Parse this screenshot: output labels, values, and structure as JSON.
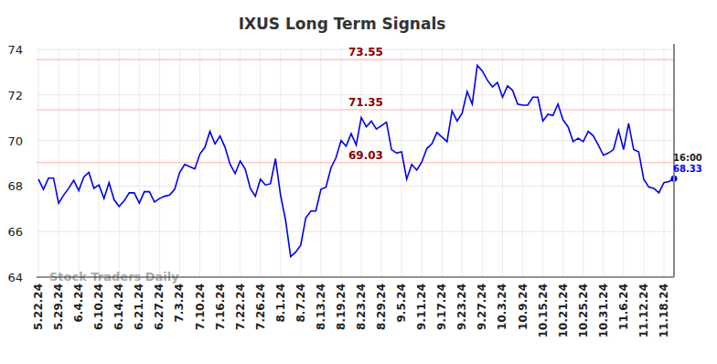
{
  "chart_data": {
    "type": "line",
    "title": "IXUS Long Term Signals",
    "categories": [
      "5.22.24",
      null,
      null,
      null,
      "5.29.24",
      null,
      null,
      null,
      "6.4.24",
      null,
      null,
      null,
      "6.10.24",
      null,
      null,
      null,
      "6.14.24",
      null,
      null,
      null,
      "6.21.24",
      null,
      null,
      null,
      "6.27.24",
      null,
      null,
      null,
      "7.3.24",
      null,
      null,
      null,
      "7.10.24",
      null,
      null,
      null,
      "7.16.24",
      null,
      null,
      null,
      "7.22.24",
      null,
      null,
      null,
      "7.26.24",
      null,
      null,
      null,
      "8.1.24",
      null,
      null,
      null,
      "8.7.24",
      null,
      null,
      null,
      "8.13.24",
      null,
      null,
      null,
      "8.19.24",
      null,
      null,
      null,
      "8.23.24",
      null,
      null,
      null,
      "8.29.24",
      null,
      null,
      null,
      "9.5.24",
      null,
      null,
      null,
      "9.11.24",
      null,
      null,
      null,
      "9.17.24",
      null,
      null,
      null,
      "9.23.24",
      null,
      null,
      null,
      "9.27.24",
      null,
      null,
      null,
      "10.3.24",
      null,
      null,
      null,
      "10.9.24",
      null,
      null,
      null,
      "10.15.24",
      null,
      null,
      null,
      "10.21.24",
      null,
      null,
      null,
      "10.25.24",
      null,
      null,
      null,
      "10.31.24",
      null,
      null,
      null,
      "11.6.24",
      null,
      null,
      null,
      "11.12.24",
      null,
      null,
      null,
      "11.18.24",
      null,
      null
    ],
    "values": [
      68.3,
      67.85,
      68.35,
      68.35,
      67.25,
      67.6,
      67.9,
      68.25,
      67.8,
      68.4,
      68.6,
      67.9,
      68.05,
      67.45,
      68.15,
      67.4,
      67.1,
      67.35,
      67.7,
      67.7,
      67.25,
      67.75,
      67.75,
      67.3,
      67.45,
      67.55,
      67.6,
      67.85,
      68.6,
      68.95,
      68.85,
      68.75,
      69.4,
      69.7,
      70.4,
      69.85,
      70.2,
      69.7,
      68.95,
      68.55,
      69.1,
      68.75,
      67.9,
      67.55,
      68.3,
      68.05,
      68.1,
      69.2,
      67.6,
      66.5,
      64.9,
      65.1,
      65.4,
      66.6,
      66.9,
      66.9,
      67.85,
      67.95,
      68.8,
      69.25,
      70.0,
      69.75,
      70.3,
      69.8,
      71.0,
      70.6,
      70.85,
      70.5,
      70.65,
      70.8,
      69.6,
      69.45,
      69.5,
      68.3,
      68.95,
      68.7,
      69.05,
      69.65,
      69.85,
      70.35,
      70.15,
      69.95,
      71.3,
      70.85,
      71.2,
      72.15,
      71.6,
      73.3,
      73.05,
      72.65,
      72.35,
      72.55,
      71.9,
      72.4,
      72.2,
      71.6,
      71.55,
      71.55,
      71.9,
      71.9,
      70.85,
      71.15,
      71.1,
      71.6,
      70.9,
      70.6,
      69.95,
      70.1,
      69.95,
      70.4,
      70.2,
      69.8,
      69.35,
      69.45,
      69.6,
      70.45,
      69.6,
      70.75,
      69.6,
      69.5,
      68.3,
      67.95,
      67.9,
      67.7,
      68.15,
      68.2,
      68.33
    ],
    "color": "#0000ee",
    "ylim": [
      64,
      74
    ],
    "yticks": [
      64,
      66,
      68,
      70,
      72,
      74
    ],
    "grid": true,
    "annotations": [
      {
        "y": 73.55,
        "text": "73.55"
      },
      {
        "y": 71.35,
        "text": "71.35"
      },
      {
        "y": 69.03,
        "text": "69.03"
      }
    ],
    "last_point": {
      "time": "16:00",
      "value": 68.33
    },
    "watermark": "Stock Traders Daily"
  }
}
